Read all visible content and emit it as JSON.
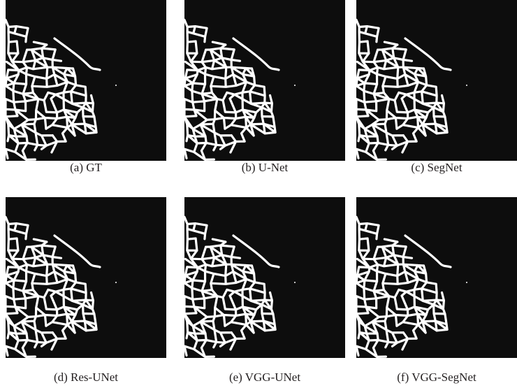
{
  "panels": [
    {
      "caption": "(a) GT"
    },
    {
      "caption": "(b) U-Net"
    },
    {
      "caption": "(c) SegNet"
    },
    {
      "caption": "(d) Res-UNet"
    },
    {
      "caption": "(e) VGG-UNet"
    },
    {
      "caption": "(f) VGG-SegNet"
    }
  ]
}
